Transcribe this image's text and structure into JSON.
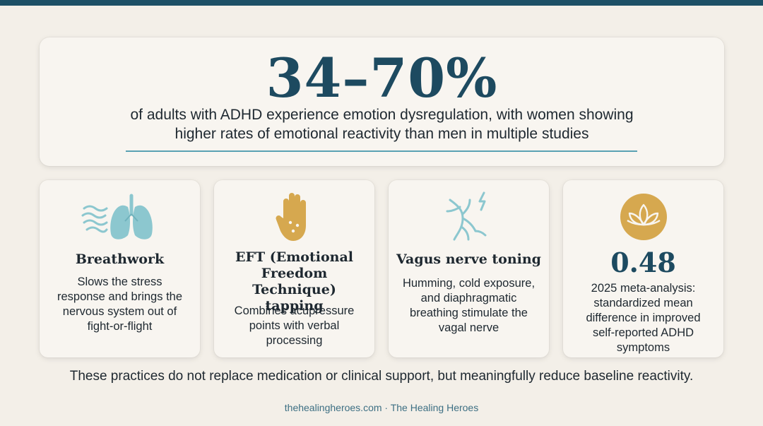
{
  "colors": {
    "background": "#f3efe8",
    "card": "#f8f5f0",
    "accent_dark": "#1d4a60",
    "accent_teal": "#5aa2b3",
    "icon_teal": "#8cc7cf",
    "icon_gold": "#d6a84f"
  },
  "hero": {
    "stat": "34–70%",
    "text_line1": "of adults with ADHD experience emotion dysregulation, with women showing",
    "text_line2": "higher rates of emotional reactivity than men in multiple studies"
  },
  "cards": [
    {
      "icon": "lungs-breath-icon",
      "title": "Breathwork",
      "body_lines": [
        "Slows the stress",
        "response and brings the",
        "nervous system out of",
        "fight-or-flight"
      ]
    },
    {
      "icon": "hand-tapping-icon",
      "title_lines": [
        "EFT (Emotional",
        "Freedom Technique)",
        "tapping"
      ],
      "body_lines": [
        "Combines acupressure",
        "points with verbal",
        "processing"
      ]
    },
    {
      "icon": "vagus-nerve-icon",
      "title": "Vagus nerve toning",
      "body_lines": [
        "Humming, cold exposure,",
        "and diaphragmatic",
        "breathing stimulate the",
        "vagal nerve"
      ]
    },
    {
      "icon": "lotus-icon",
      "stat": "0.48",
      "body_lines": [
        "2025 meta-analysis:",
        "standardized mean",
        "difference in improved",
        "self-reported ADHD",
        "symptoms"
      ]
    }
  ],
  "footnote": "These practices do not replace medication or clinical support, but meaningfully reduce baseline reactivity.",
  "source": "thehealingheroes.com · The Healing Heroes"
}
